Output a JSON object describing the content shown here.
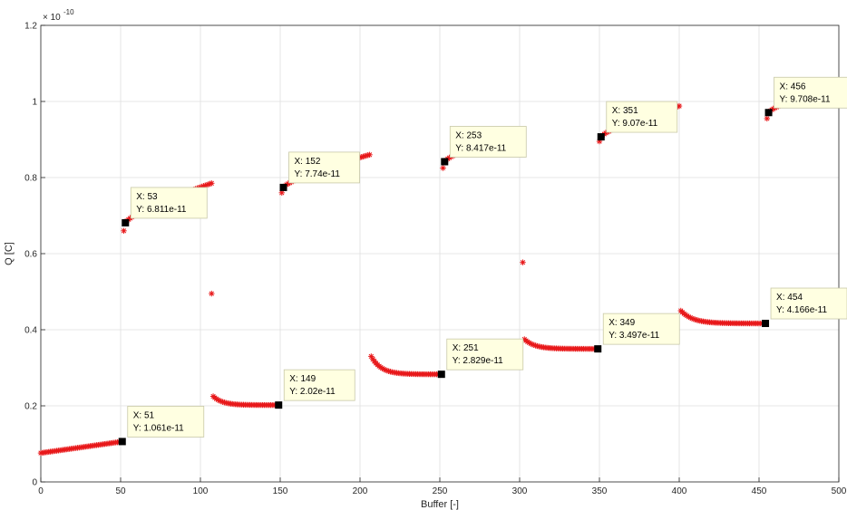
{
  "chart_data": {
    "type": "scatter",
    "xlabel": "Buffer [-]",
    "ylabel": "Q [C]",
    "xlim": [
      0,
      500
    ],
    "ylim": [
      0,
      1.2e-10
    ],
    "x_ticks": [
      0,
      50,
      100,
      150,
      200,
      250,
      300,
      350,
      400,
      450,
      500
    ],
    "y_ticks": [
      0,
      0.2,
      0.4,
      0.6,
      0.8,
      1,
      1.2
    ],
    "y_exponent_label": "× 10",
    "y_exponent_power": "-10",
    "grid": true,
    "marker": "*",
    "marker_color": "#e8191b",
    "segments": [
      {
        "x_start": 0,
        "x_end": 51,
        "y_start": 7.6e-12,
        "y_end": 1.061e-11,
        "shape": "linear"
      },
      {
        "x_start": 53,
        "x_end": 107,
        "y_start": 6.811e-11,
        "y_end": 7.85e-11,
        "shape": "rising"
      },
      {
        "x_start": 108,
        "x_end": 149,
        "y_start": 2.25e-11,
        "y_end": 2.02e-11,
        "shape": "decay"
      },
      {
        "x_start": 152,
        "x_end": 206,
        "y_start": 7.74e-11,
        "y_end": 8.6e-11,
        "shape": "rising"
      },
      {
        "x_start": 207,
        "x_end": 251,
        "y_start": 3.3e-11,
        "y_end": 2.829e-11,
        "shape": "decay"
      },
      {
        "x_start": 253,
        "x_end": 302,
        "y_start": 8.417e-11,
        "y_end": 9.25e-11,
        "shape": "rising"
      },
      {
        "x_start": 303,
        "x_end": 349,
        "y_start": 3.75e-11,
        "y_end": 3.497e-11,
        "shape": "decay"
      },
      {
        "x_start": 351,
        "x_end": 400,
        "y_start": 9.07e-11,
        "y_end": 9.88e-11,
        "shape": "rising"
      },
      {
        "x_start": 401,
        "x_end": 454,
        "y_start": 4.5e-11,
        "y_end": 4.166e-11,
        "shape": "decay"
      },
      {
        "x_start": 456,
        "x_end": 500,
        "y_start": 9.708e-11,
        "y_end": 1.045e-10,
        "shape": "rising"
      }
    ],
    "outliers": [
      {
        "x": 52,
        "y": 6.6e-11
      },
      {
        "x": 107,
        "y": 4.95e-11
      },
      {
        "x": 151,
        "y": 7.6e-11
      },
      {
        "x": 252,
        "y": 8.25e-11
      },
      {
        "x": 302,
        "y": 5.77e-11
      },
      {
        "x": 350,
        "y": 8.95e-11
      },
      {
        "x": 455,
        "y": 9.55e-11
      }
    ],
    "datatips": [
      {
        "x": 51,
        "y": 1.061e-11,
        "x_text": "X: 51",
        "y_text": "Y: 1.061e-11"
      },
      {
        "x": 53,
        "y": 6.811e-11,
        "x_text": "X: 53",
        "y_text": "Y: 6.811e-11"
      },
      {
        "x": 149,
        "y": 2.02e-11,
        "x_text": "X: 149",
        "y_text": "Y: 2.02e-11"
      },
      {
        "x": 152,
        "y": 7.74e-11,
        "x_text": "X: 152",
        "y_text": "Y: 7.74e-11"
      },
      {
        "x": 251,
        "y": 2.829e-11,
        "x_text": "X: 251",
        "y_text": "Y: 2.829e-11"
      },
      {
        "x": 253,
        "y": 8.417e-11,
        "x_text": "X: 253",
        "y_text": "Y: 8.417e-11"
      },
      {
        "x": 349,
        "y": 3.497e-11,
        "x_text": "X: 349",
        "y_text": "Y: 3.497e-11"
      },
      {
        "x": 351,
        "y": 9.07e-11,
        "x_text": "X: 351",
        "y_text": "Y: 9.07e-11"
      },
      {
        "x": 454,
        "y": 4.166e-11,
        "x_text": "X: 454",
        "y_text": "Y: 4.166e-11"
      },
      {
        "x": 456,
        "y": 9.708e-11,
        "x_text": "X: 456",
        "y_text": "Y: 9.708e-11"
      }
    ]
  }
}
